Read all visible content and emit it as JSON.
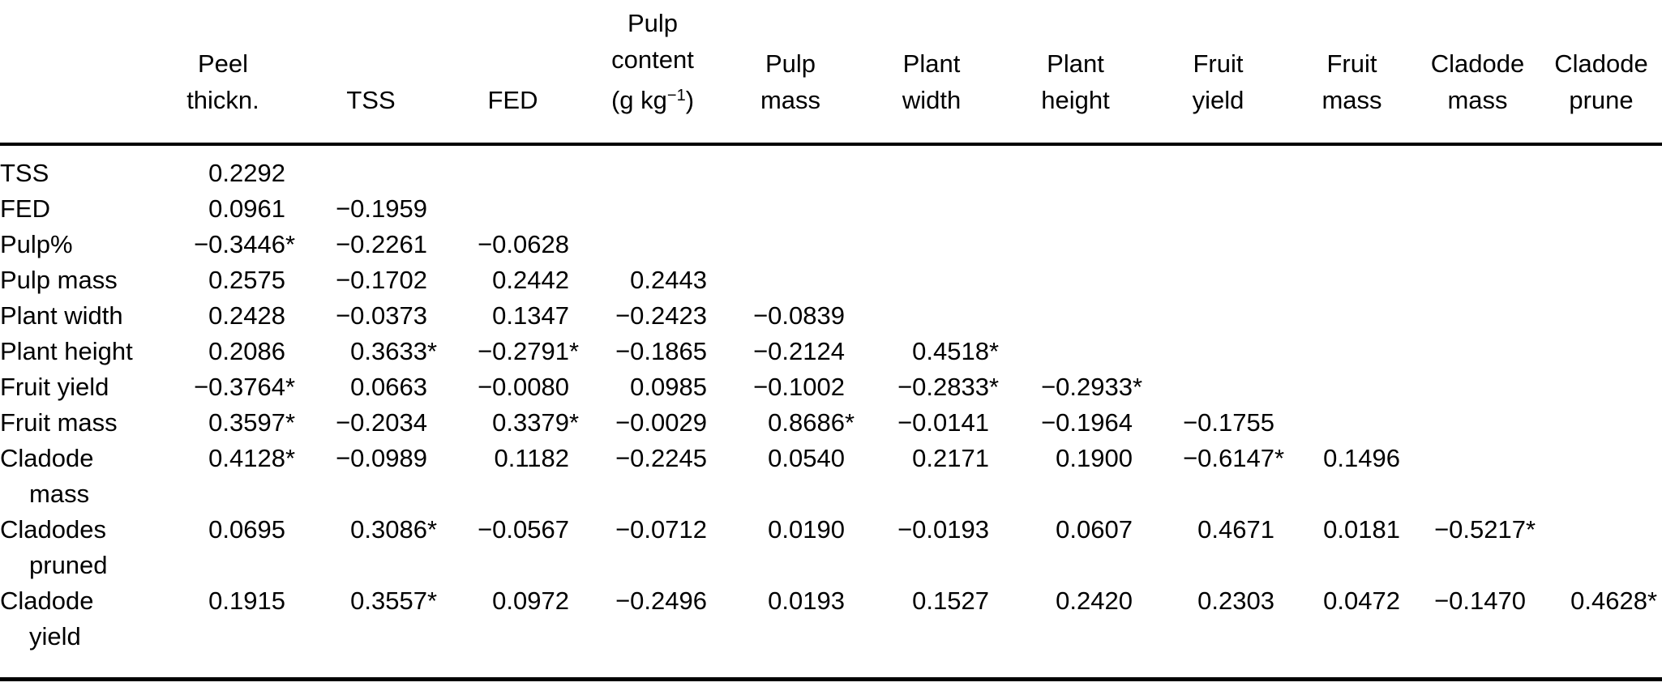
{
  "colors": {
    "background": "#ffffff",
    "text": "#000000",
    "rule": "#000000"
  },
  "significance_marker": "*",
  "chart_data": {
    "type": "table",
    "columns": [
      {
        "id": "peel-thickn",
        "lines": [
          "Peel",
          "thickn."
        ]
      },
      {
        "id": "tss",
        "lines": [
          "TSS"
        ]
      },
      {
        "id": "fed",
        "lines": [
          "FED"
        ]
      },
      {
        "id": "pulp-content",
        "lines": [
          "Pulp",
          "content",
          {
            "pre": "(g kg",
            "sup": "−1",
            "post": ")"
          }
        ]
      },
      {
        "id": "pulp-mass",
        "lines": [
          "Pulp",
          "mass"
        ]
      },
      {
        "id": "plant-width",
        "lines": [
          "Plant",
          "width"
        ]
      },
      {
        "id": "plant-height",
        "lines": [
          "Plant",
          "height"
        ]
      },
      {
        "id": "fruit-yield",
        "lines": [
          "Fruit",
          "yield"
        ]
      },
      {
        "id": "fruit-mass",
        "lines": [
          "Fruit",
          "mass"
        ]
      },
      {
        "id": "cladode-mass",
        "lines": [
          "Cladode",
          "mass"
        ]
      },
      {
        "id": "cladode-prune",
        "lines": [
          "Cladode",
          "prune"
        ]
      }
    ],
    "rows": [
      {
        "id": "tss",
        "label_lines": [
          "TSS"
        ],
        "values": [
          "0.2292",
          "",
          "",
          "",
          "",
          "",
          "",
          "",
          "",
          "",
          ""
        ]
      },
      {
        "id": "fed",
        "label_lines": [
          "FED"
        ],
        "values": [
          "0.0961",
          "−0.1959",
          "",
          "",
          "",
          "",
          "",
          "",
          "",
          "",
          ""
        ]
      },
      {
        "id": "pulp-pct",
        "label_lines": [
          "Pulp%"
        ],
        "values": [
          "−0.3446*",
          "−0.2261",
          "−0.0628",
          "",
          "",
          "",
          "",
          "",
          "",
          "",
          ""
        ]
      },
      {
        "id": "pulp-mass",
        "label_lines": [
          "Pulp mass"
        ],
        "values": [
          "0.2575",
          "−0.1702",
          "0.2442",
          "0.2443",
          "",
          "",
          "",
          "",
          "",
          "",
          ""
        ]
      },
      {
        "id": "plant-width",
        "label_lines": [
          "Plant width"
        ],
        "values": [
          "0.2428",
          "−0.0373",
          "0.1347",
          "−0.2423",
          "−0.0839",
          "",
          "",
          "",
          "",
          "",
          ""
        ]
      },
      {
        "id": "plant-height",
        "label_lines": [
          "Plant height"
        ],
        "values": [
          "0.2086",
          "0.3633*",
          "−0.2791*",
          "−0.1865",
          "−0.2124",
          "0.4518*",
          "",
          "",
          "",
          "",
          ""
        ]
      },
      {
        "id": "fruit-yield",
        "label_lines": [
          "Fruit yield"
        ],
        "values": [
          "−0.3764*",
          "0.0663",
          "−0.0080",
          "0.0985",
          "−0.1002",
          "−0.2833*",
          "−0.2933*",
          "",
          "",
          "",
          ""
        ]
      },
      {
        "id": "fruit-mass",
        "label_lines": [
          "Fruit mass"
        ],
        "values": [
          "0.3597*",
          "−0.2034",
          "0.3379*",
          "−0.0029",
          "0.8686*",
          "−0.0141",
          "−0.1964",
          "−0.1755",
          "",
          "",
          ""
        ]
      },
      {
        "id": "cladode-mass",
        "label_lines": [
          "Cladode",
          "mass"
        ],
        "values": [
          "0.4128*",
          "−0.0989",
          "0.1182",
          "−0.2245",
          "0.0540",
          "0.2171",
          "0.1900",
          "−0.6147*",
          "0.1496",
          "",
          ""
        ]
      },
      {
        "id": "cladodes-pruned",
        "label_lines": [
          "Cladodes",
          "pruned"
        ],
        "values": [
          "0.0695",
          "0.3086*",
          "−0.0567",
          "−0.0712",
          "0.0190",
          "−0.0193",
          "0.0607",
          "0.4671",
          "0.0181",
          "−0.5217*",
          ""
        ]
      },
      {
        "id": "cladode-yield",
        "label_lines": [
          "Cladode",
          "yield"
        ],
        "values": [
          "0.1915",
          "0.3557*",
          "0.0972",
          "−0.2496",
          "0.0193",
          "0.1527",
          "0.2420",
          "0.2303",
          "0.0472",
          "−0.1470",
          "0.4628*"
        ]
      }
    ]
  }
}
